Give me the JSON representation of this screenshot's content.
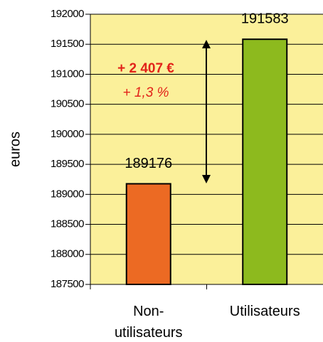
{
  "chart_data": {
    "type": "bar",
    "y_label": "euros",
    "categories": [
      "Non-utilisateurs",
      "Utilisateurs"
    ],
    "values": [
      189176,
      191583
    ],
    "colors": [
      "#ec6a23",
      "#8dba1e"
    ],
    "ylim": [
      187500,
      192000
    ],
    "yticks": [
      187500,
      188000,
      188500,
      189000,
      189500,
      190000,
      190500,
      191000,
      191500,
      192000
    ],
    "grid": true,
    "background": "#fbf09a",
    "annotations": [
      "+ 2 407 €",
      "+ 1,3 %"
    ]
  }
}
